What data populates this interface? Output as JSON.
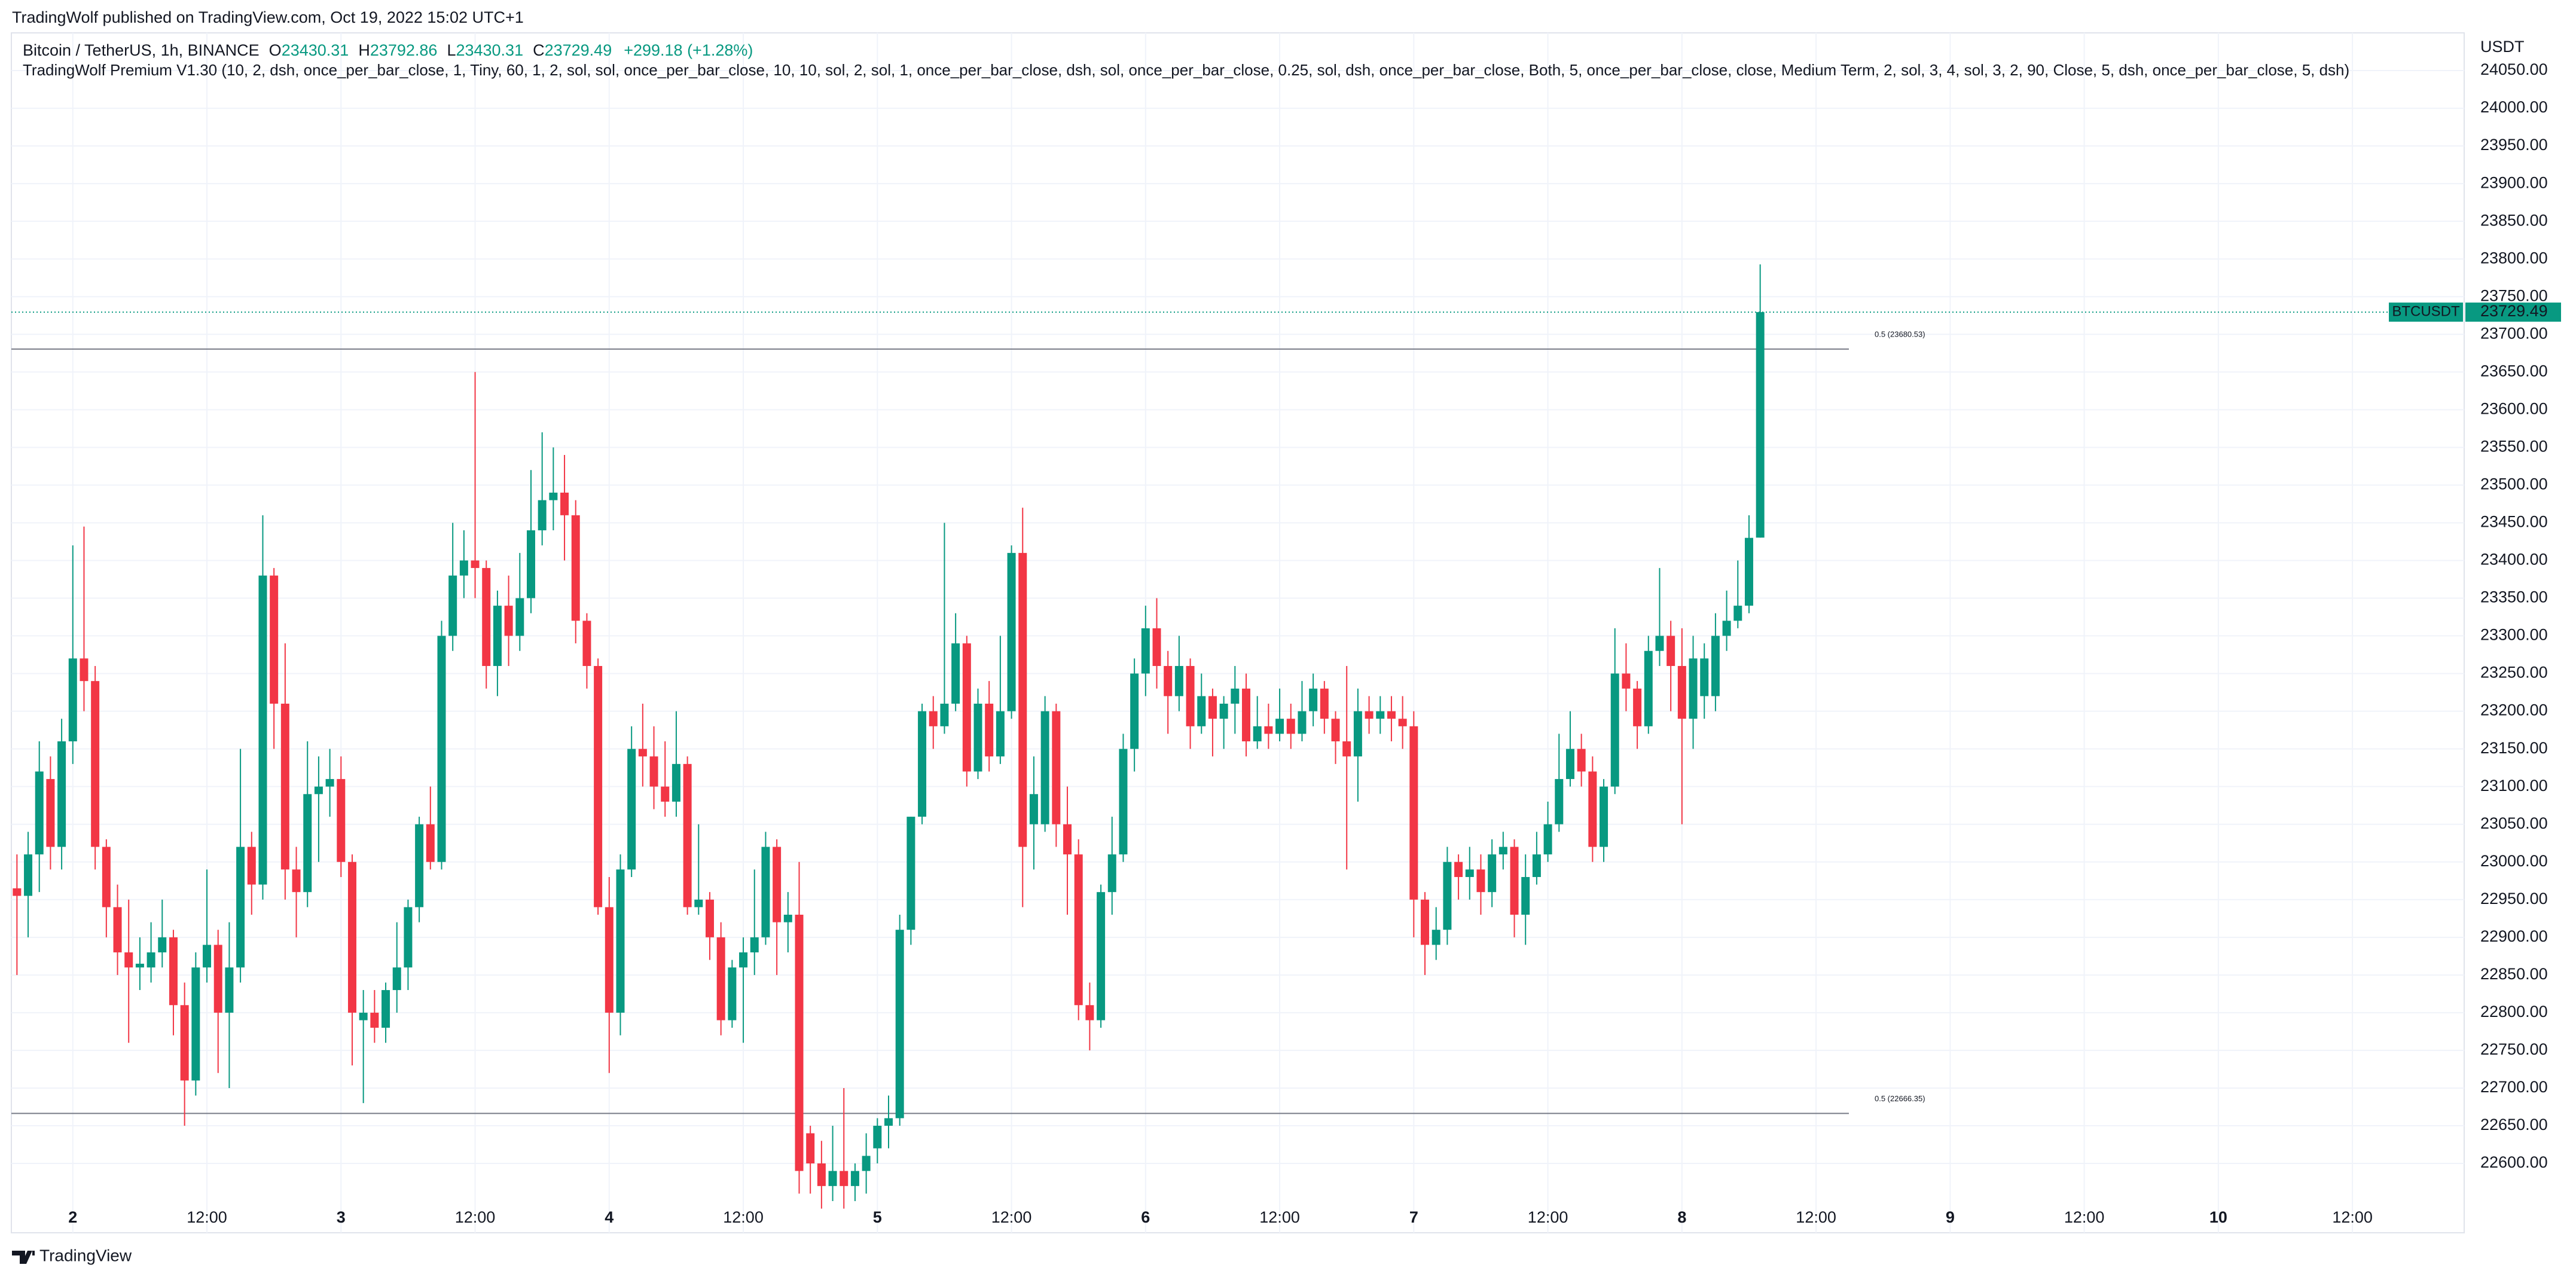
{
  "header": {
    "text": "TradingWolf published on TradingView.com, Oct 19, 2022 15:02 UTC+1"
  },
  "footer": {
    "brand": "TradingView"
  },
  "chart_data": {
    "type": "candlestick",
    "symbol": "Bitcoin / TetherUS, 1h, BINANCE",
    "ohlc_labels": [
      "O",
      "H",
      "L",
      "C"
    ],
    "change": "+299.18 (+1.28%)",
    "indicator": "TradingWolf Premium V1.30 (10, 2, dsh, once_per_bar_close, 1, Tiny, 60, 1, 2, sol, sol, once_per_bar_close, 10, 10, sol, 2, sol, 1, once_per_bar_close, dsh, sol, once_per_bar_close, 0.25, sol, dsh, once_per_bar_close, Both, 5, once_per_bar_close, close, Medium Term, 2, sol, 3, 4, sol, 3, 2, 90, Close, 5, dsh, once_per_bar_close, 5, dsh)",
    "currency": "USDT",
    "ticker": "BTCUSDT",
    "up_color": "#089981",
    "down_color": "#f23645",
    "open": [
      22965,
      22955,
      23010,
      23110,
      23020,
      23160,
      23270,
      23240,
      23020,
      22940,
      22880,
      22860,
      22860,
      22880,
      22900,
      22810,
      22710,
      22860,
      22890,
      22800,
      22860,
      23020,
      22970,
      23380,
      23210,
      22990,
      22960,
      23090,
      23100,
      23110,
      23000,
      22790,
      22800,
      22780,
      22830,
      22860,
      22940,
      23050,
      23000,
      23300,
      23380,
      23400,
      23390,
      23260,
      23340,
      23300,
      23350,
      23440,
      23480,
      23490,
      23460,
      23320,
      23260,
      22940,
      22800,
      22990,
      23150,
      23140,
      23100,
      23080,
      23130,
      22940,
      22950,
      22900,
      22790,
      22860,
      22880,
      22900,
      23020,
      22920,
      22930,
      22640,
      22600,
      22570,
      22590,
      22570,
      22590,
      22620,
      22650,
      22660,
      22910,
      23060,
      23200,
      23180,
      23210,
      23290,
      23120,
      23210,
      23140,
      23200,
      23410,
      23050,
      23050,
      23200,
      23050,
      23010,
      22810,
      22790,
      22960,
      23010,
      23150,
      23250,
      23310,
      23260,
      23220,
      23260,
      23180,
      23220,
      23190,
      23210,
      23230,
      23160,
      23180,
      23170,
      23190,
      23170,
      23200,
      23230,
      23190,
      23160,
      23140,
      23200,
      23190,
      23200,
      23190,
      23180,
      22950,
      22890,
      22910,
      23000,
      22980,
      22990,
      22960,
      23010,
      23020,
      22930,
      22980,
      23010,
      23050,
      23110,
      23150,
      23120,
      23020,
      23100,
      23250,
      23230,
      23180,
      23280,
      23300,
      23260,
      23190,
      23220,
      23220,
      23300,
      23320,
      23340,
      23430.31
    ],
    "high": [
      23010,
      23040,
      23160,
      23140,
      23190,
      23420,
      23445,
      23260,
      23030,
      22970,
      22950,
      22900,
      22920,
      22950,
      22910,
      22840,
      22880,
      22990,
      22910,
      22920,
      23150,
      23040,
      23460,
      23390,
      23290,
      23020,
      23160,
      23140,
      23150,
      23140,
      23010,
      22830,
      22830,
      22840,
      22920,
      22950,
      23060,
      23100,
      23320,
      23450,
      23440,
      23650,
      23400,
      23360,
      23380,
      23410,
      23520,
      23570,
      23550,
      23540,
      23480,
      23330,
      23270,
      22980,
      23010,
      23180,
      23210,
      23180,
      23160,
      23200,
      23140,
      23050,
      22960,
      22920,
      22870,
      22900,
      22990,
      23040,
      23030,
      22960,
      23000,
      22650,
      22630,
      22650,
      22700,
      22600,
      22640,
      22660,
      22690,
      22930,
      23060,
      23210,
      23220,
      23450,
      23330,
      23300,
      23230,
      23240,
      23300,
      23420,
      23470,
      23140,
      23220,
      23210,
      23100,
      23030,
      22840,
      22970,
      23060,
      23170,
      23270,
      23340,
      23350,
      23280,
      23300,
      23270,
      23250,
      23230,
      23220,
      23260,
      23250,
      23220,
      23210,
      23230,
      23210,
      23240,
      23250,
      23240,
      23200,
      23260,
      23230,
      23220,
      23220,
      23220,
      23220,
      23200,
      22960,
      22940,
      23020,
      23010,
      23020,
      23010,
      23030,
      23040,
      23030,
      23010,
      23040,
      23080,
      23170,
      23200,
      23170,
      23140,
      23110,
      23310,
      23290,
      23240,
      23300,
      23390,
      23320,
      23310,
      23300,
      23290,
      23330,
      23360,
      23400,
      23460,
      23792.86
    ],
    "low": [
      22850,
      22900,
      22960,
      22990,
      22990,
      23130,
      23200,
      22990,
      22900,
      22850,
      22760,
      22830,
      22840,
      22860,
      22770,
      22650,
      22690,
      22840,
      22720,
      22700,
      22840,
      22930,
      22950,
      23150,
      22950,
      22900,
      22940,
      23000,
      23060,
      22980,
      22730,
      22680,
      22760,
      22760,
      22800,
      22830,
      22920,
      22990,
      22990,
      23280,
      23350,
      23350,
      23230,
      23220,
      23260,
      23280,
      23330,
      23420,
      23440,
      23400,
      23290,
      23230,
      22930,
      22720,
      22770,
      22980,
      23100,
      23070,
      23060,
      23060,
      22930,
      22930,
      22870,
      22770,
      22780,
      22760,
      22850,
      22890,
      22850,
      22880,
      22560,
      22560,
      22540,
      22550,
      22540,
      22550,
      22560,
      22600,
      22620,
      22650,
      22890,
      23050,
      23150,
      23170,
      23200,
      23100,
      23110,
      23120,
      23130,
      23190,
      22940,
      22990,
      23040,
      23020,
      22930,
      22790,
      22750,
      22780,
      22930,
      23000,
      23120,
      23220,
      23230,
      23170,
      23200,
      23150,
      23170,
      23140,
      23150,
      23170,
      23140,
      23150,
      23150,
      23160,
      23150,
      23160,
      23180,
      23170,
      23130,
      22990,
      23080,
      23170,
      23170,
      23160,
      23150,
      22900,
      22850,
      22870,
      22890,
      22950,
      22950,
      22930,
      22940,
      22990,
      22900,
      22890,
      22970,
      23000,
      23040,
      23100,
      23100,
      23000,
      23000,
      23090,
      23200,
      23150,
      23170,
      23260,
      23200,
      23050,
      23150,
      23190,
      23200,
      23280,
      23310,
      23330,
      23430.31
    ],
    "close": [
      22955,
      23010,
      23120,
      23020,
      23160,
      23270,
      23240,
      23020,
      22940,
      22880,
      22860,
      22865,
      22880,
      22900,
      22810,
      22710,
      22860,
      22890,
      22800,
      22860,
      23020,
      22970,
      23380,
      23210,
      22990,
      22960,
      23090,
      23100,
      23110,
      23000,
      22800,
      22800,
      22780,
      22830,
      22860,
      22940,
      23050,
      23000,
      23300,
      23380,
      23400,
      23390,
      23260,
      23340,
      23300,
      23350,
      23440,
      23480,
      23490,
      23460,
      23320,
      23260,
      22940,
      22800,
      22990,
      23150,
      23140,
      23100,
      23080,
      23130,
      22940,
      22950,
      22900,
      22790,
      22860,
      22880,
      22900,
      23020,
      22920,
      22930,
      22590,
      22600,
      22570,
      22590,
      22570,
      22590,
      22610,
      22650,
      22660,
      22910,
      23060,
      23200,
      23180,
      23210,
      23290,
      23120,
      23210,
      23140,
      23200,
      23410,
      23020,
      23090,
      23200,
      23050,
      23010,
      22810,
      22790,
      22960,
      23010,
      23150,
      23250,
      23310,
      23260,
      23220,
      23260,
      23180,
      23220,
      23190,
      23210,
      23230,
      23160,
      23180,
      23170,
      23190,
      23170,
      23200,
      23230,
      23190,
      23160,
      23140,
      23200,
      23190,
      23200,
      23190,
      23180,
      22950,
      22890,
      22910,
      23000,
      22980,
      22990,
      22960,
      23010,
      23020,
      22930,
      22980,
      23010,
      23050,
      23110,
      23150,
      23120,
      23020,
      23100,
      23250,
      23230,
      23180,
      23280,
      23300,
      23260,
      23190,
      23270,
      23270,
      23300,
      23320,
      23340,
      23430,
      23729.49
    ],
    "levels": [
      {
        "value": 23680.53,
        "label": "0.5 (23680.53)"
      },
      {
        "value": 22666.35,
        "label": "0.5 (22666.35)"
      }
    ],
    "xlim": [
      -0.5,
      219
    ],
    "xticks": [
      {
        "value": 5,
        "label": "2"
      },
      {
        "value": 17,
        "label": "12:00"
      },
      {
        "value": 29,
        "label": "3"
      },
      {
        "value": 41,
        "label": "12:00"
      },
      {
        "value": 53,
        "label": "4"
      },
      {
        "value": 65,
        "label": "12:00"
      },
      {
        "value": 77,
        "label": "5"
      },
      {
        "value": 89,
        "label": "12:00"
      },
      {
        "value": 101,
        "label": "6"
      },
      {
        "value": 113,
        "label": "12:00"
      },
      {
        "value": 125,
        "label": "7"
      },
      {
        "value": 137,
        "label": "12:00"
      },
      {
        "value": 149,
        "label": "8"
      },
      {
        "value": 161,
        "label": "12:00"
      },
      {
        "value": 173,
        "label": "9"
      },
      {
        "value": 185,
        "label": "12:00"
      },
      {
        "value": 197,
        "label": "10"
      },
      {
        "value": 209,
        "label": "12:00"
      }
    ],
    "ylim": [
      22508,
      24100
    ],
    "yticks": [
      {
        "value": 22600,
        "label": "22600.00"
      },
      {
        "value": 22650,
        "label": "22650.00"
      },
      {
        "value": 22700,
        "label": "22700.00"
      },
      {
        "value": 22750,
        "label": "22750.00"
      },
      {
        "value": 22800,
        "label": "22800.00"
      },
      {
        "value": 22850,
        "label": "22850.00"
      },
      {
        "value": 22900,
        "label": "22900.00"
      },
      {
        "value": 22950,
        "label": "22950.00"
      },
      {
        "value": 23000,
        "label": "23000.00"
      },
      {
        "value": 23050,
        "label": "23050.00"
      },
      {
        "value": 23100,
        "label": "23100.00"
      },
      {
        "value": 23150,
        "label": "23150.00"
      },
      {
        "value": 23200,
        "label": "23200.00"
      },
      {
        "value": 23250,
        "label": "23250.00"
      },
      {
        "value": 23300,
        "label": "23300.00"
      },
      {
        "value": 23350,
        "label": "23350.00"
      },
      {
        "value": 23400,
        "label": "23400.00"
      },
      {
        "value": 23450,
        "label": "23450.00"
      },
      {
        "value": 23500,
        "label": "23500.00"
      },
      {
        "value": 23550,
        "label": "23550.00"
      },
      {
        "value": 23600,
        "label": "23600.00"
      },
      {
        "value": 23650,
        "label": "23650.00"
      },
      {
        "value": 23700,
        "label": "23700.00"
      },
      {
        "value": 23750,
        "label": "23750.00"
      },
      {
        "value": 23800,
        "label": "23800.00"
      },
      {
        "value": 23850,
        "label": "23850.00"
      },
      {
        "value": 23900,
        "label": "23900.00"
      },
      {
        "value": 23950,
        "label": "23950.00"
      },
      {
        "value": 24000,
        "label": "24000.00"
      },
      {
        "value": 24050,
        "label": "24050.00"
      }
    ],
    "grid": true
  }
}
